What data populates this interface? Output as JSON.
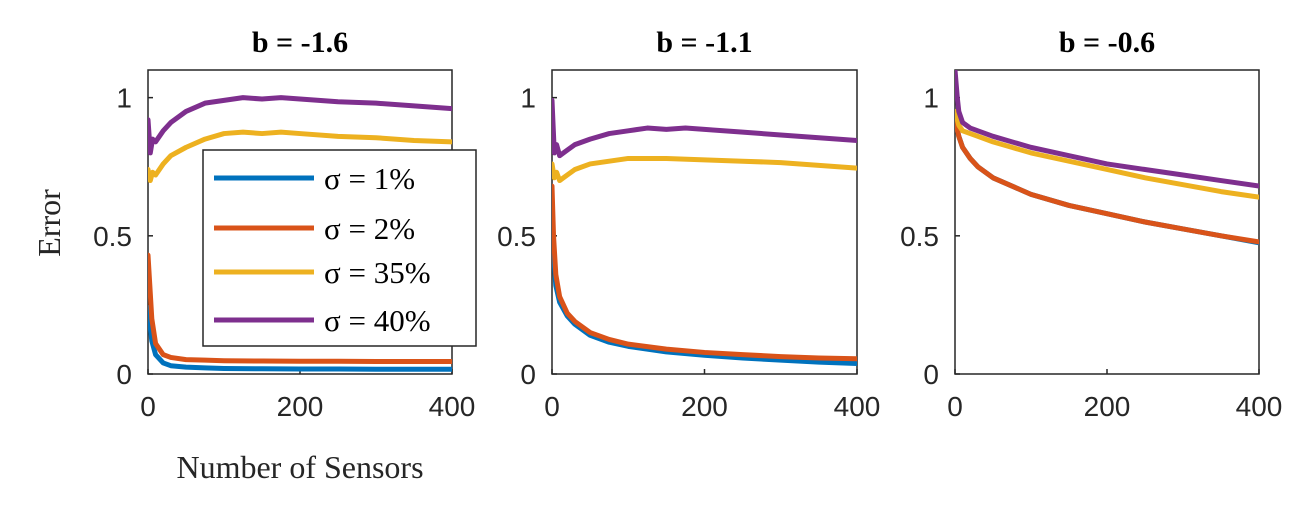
{
  "chart_data": [
    {
      "type": "line",
      "title": "b = -1.6",
      "xlabel": "Number of Sensors",
      "ylabel": "Error",
      "xlim": [
        0,
        400
      ],
      "ylim": [
        0,
        1.1
      ],
      "xticks": [
        "0",
        "200",
        "400"
      ],
      "yticks": [
        "0",
        "0.5",
        "1"
      ],
      "series": [
        {
          "name": "σ = 1%",
          "x": [
            0,
            5,
            10,
            20,
            30,
            50,
            75,
            100,
            150,
            200,
            250,
            300,
            350,
            400
          ],
          "values": [
            0.24,
            0.12,
            0.07,
            0.04,
            0.03,
            0.025,
            0.022,
            0.02,
            0.019,
            0.018,
            0.018,
            0.017,
            0.017,
            0.017
          ]
        },
        {
          "name": "σ = 2%",
          "x": [
            0,
            5,
            10,
            20,
            30,
            50,
            75,
            100,
            150,
            200,
            250,
            300,
            350,
            400
          ],
          "values": [
            0.43,
            0.2,
            0.11,
            0.07,
            0.06,
            0.052,
            0.05,
            0.048,
            0.047,
            0.046,
            0.046,
            0.045,
            0.045,
            0.045
          ]
        },
        {
          "name": "σ = 35%",
          "x": [
            0,
            3,
            6,
            10,
            20,
            30,
            50,
            75,
            100,
            125,
            150,
            175,
            200,
            250,
            300,
            350,
            400
          ],
          "values": [
            0.74,
            0.7,
            0.73,
            0.72,
            0.76,
            0.79,
            0.82,
            0.85,
            0.87,
            0.875,
            0.87,
            0.875,
            0.87,
            0.86,
            0.855,
            0.845,
            0.84
          ]
        },
        {
          "name": "σ = 40%",
          "x": [
            0,
            3,
            6,
            10,
            20,
            30,
            50,
            75,
            100,
            125,
            150,
            175,
            200,
            250,
            300,
            350,
            400
          ],
          "values": [
            0.92,
            0.8,
            0.85,
            0.84,
            0.88,
            0.91,
            0.95,
            0.98,
            0.99,
            1.0,
            0.995,
            1.0,
            0.995,
            0.985,
            0.98,
            0.97,
            0.96
          ]
        }
      ]
    },
    {
      "type": "line",
      "title": "b = -1.1",
      "xlim": [
        0,
        400
      ],
      "ylim": [
        0,
        1.1
      ],
      "xticks": [
        "0",
        "200",
        "400"
      ],
      "yticks": [
        "0",
        "0.5",
        "1"
      ],
      "series": [
        {
          "name": "σ = 1%",
          "x": [
            0,
            5,
            10,
            20,
            30,
            50,
            75,
            100,
            150,
            200,
            250,
            300,
            350,
            400
          ],
          "values": [
            0.52,
            0.32,
            0.26,
            0.21,
            0.18,
            0.14,
            0.115,
            0.1,
            0.08,
            0.068,
            0.058,
            0.05,
            0.043,
            0.038
          ]
        },
        {
          "name": "σ = 2%",
          "x": [
            0,
            2,
            5,
            10,
            20,
            30,
            50,
            75,
            100,
            150,
            200,
            250,
            300,
            350,
            400
          ],
          "values": [
            0.68,
            0.5,
            0.36,
            0.28,
            0.22,
            0.19,
            0.15,
            0.125,
            0.108,
            0.09,
            0.078,
            0.07,
            0.063,
            0.058,
            0.055
          ]
        },
        {
          "name": "σ = 35%",
          "x": [
            0,
            3,
            6,
            10,
            20,
            30,
            50,
            75,
            100,
            150,
            200,
            250,
            300,
            350,
            400
          ],
          "values": [
            0.76,
            0.71,
            0.73,
            0.7,
            0.72,
            0.74,
            0.76,
            0.77,
            0.78,
            0.78,
            0.775,
            0.77,
            0.765,
            0.755,
            0.745
          ]
        },
        {
          "name": "σ = 40%",
          "x": [
            0,
            3,
            6,
            10,
            20,
            30,
            50,
            75,
            100,
            125,
            150,
            175,
            200,
            250,
            300,
            350,
            400
          ],
          "values": [
            0.99,
            0.8,
            0.83,
            0.79,
            0.81,
            0.83,
            0.85,
            0.87,
            0.88,
            0.89,
            0.885,
            0.89,
            0.885,
            0.875,
            0.865,
            0.855,
            0.845
          ]
        }
      ]
    },
    {
      "type": "line",
      "title": "b = -0.6",
      "xlim": [
        0,
        400
      ],
      "ylim": [
        0,
        1.1
      ],
      "xticks": [
        "0",
        "200",
        "400"
      ],
      "yticks": [
        "0",
        "0.5",
        "1"
      ],
      "series": [
        {
          "name": "σ = 1%",
          "x": [
            0,
            5,
            10,
            20,
            30,
            50,
            75,
            100,
            150,
            200,
            250,
            300,
            350,
            400
          ],
          "values": [
            0.92,
            0.86,
            0.82,
            0.78,
            0.75,
            0.71,
            0.68,
            0.65,
            0.61,
            0.58,
            0.55,
            0.525,
            0.5,
            0.475
          ]
        },
        {
          "name": "σ = 2%",
          "x": [
            0,
            5,
            10,
            20,
            30,
            50,
            75,
            100,
            150,
            200,
            250,
            300,
            350,
            400
          ],
          "values": [
            0.92,
            0.86,
            0.82,
            0.78,
            0.75,
            0.71,
            0.68,
            0.65,
            0.61,
            0.58,
            0.55,
            0.525,
            0.5,
            0.478
          ]
        },
        {
          "name": "σ = 35%",
          "x": [
            0,
            5,
            10,
            20,
            30,
            50,
            75,
            100,
            150,
            200,
            250,
            300,
            350,
            400
          ],
          "values": [
            0.95,
            0.9,
            0.88,
            0.87,
            0.86,
            0.84,
            0.82,
            0.8,
            0.77,
            0.74,
            0.71,
            0.685,
            0.66,
            0.64
          ]
        },
        {
          "name": "σ = 40%",
          "x": [
            0,
            3,
            5,
            10,
            20,
            30,
            50,
            75,
            100,
            150,
            200,
            250,
            300,
            350,
            400
          ],
          "values": [
            1.1,
            1.0,
            0.95,
            0.91,
            0.89,
            0.88,
            0.86,
            0.84,
            0.82,
            0.79,
            0.76,
            0.74,
            0.72,
            0.7,
            0.68
          ]
        }
      ]
    }
  ],
  "legend": {
    "entries": [
      "σ = 1%",
      "σ = 2%",
      "σ = 35%",
      "σ = 40%"
    ],
    "placement": "center of first panel"
  },
  "colors": {
    "sigma_1": "#0072BD",
    "sigma_2": "#D95319",
    "sigma_35": "#EDB120",
    "sigma_40": "#7E2F8E",
    "axis": "#262626"
  }
}
